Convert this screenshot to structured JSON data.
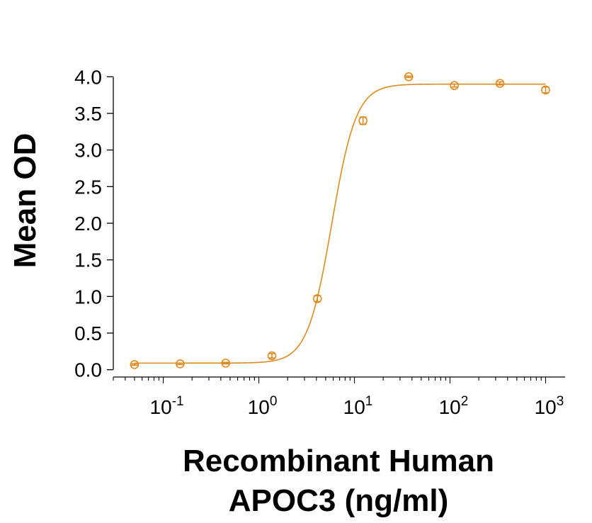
{
  "chart_data": {
    "type": "scatter",
    "title": "",
    "xlabel_lines": [
      "Recombinant Human",
      "APOC3 (ng/ml)"
    ],
    "ylabel": "Mean OD",
    "x_scale": "log10",
    "xlim": [
      0.03,
      1600
    ],
    "ylim": [
      -0.1,
      4.1
    ],
    "x_ticks": [
      {
        "value": 0.1,
        "base": "10",
        "exp": "-1"
      },
      {
        "value": 1,
        "base": "10",
        "exp": "0"
      },
      {
        "value": 10,
        "base": "10",
        "exp": "1"
      },
      {
        "value": 100,
        "base": "10",
        "exp": "2"
      },
      {
        "value": 1000,
        "base": "10",
        "exp": "3"
      }
    ],
    "y_ticks": [
      "0.0",
      "0.5",
      "1.0",
      "1.5",
      "2.0",
      "2.5",
      "3.0",
      "3.5",
      "4.0"
    ],
    "grid": false,
    "color": "#E08A1E",
    "series": [
      {
        "x": [
          0.05,
          0.15,
          0.45,
          1.37,
          4.1,
          12.3,
          37,
          111,
          333,
          1000
        ],
        "y": [
          0.07,
          0.08,
          0.09,
          0.19,
          0.97,
          3.4,
          4.0,
          3.88,
          3.91,
          3.82
        ],
        "error": [
          0.01,
          0.01,
          0.01,
          0.03,
          0.04,
          0.05,
          0.01,
          0.02,
          0.02,
          0.04
        ]
      }
    ],
    "fit": {
      "model": "4PL",
      "bottom": 0.09,
      "top": 3.9,
      "ec50": 5.8,
      "hill": 3.4
    }
  }
}
